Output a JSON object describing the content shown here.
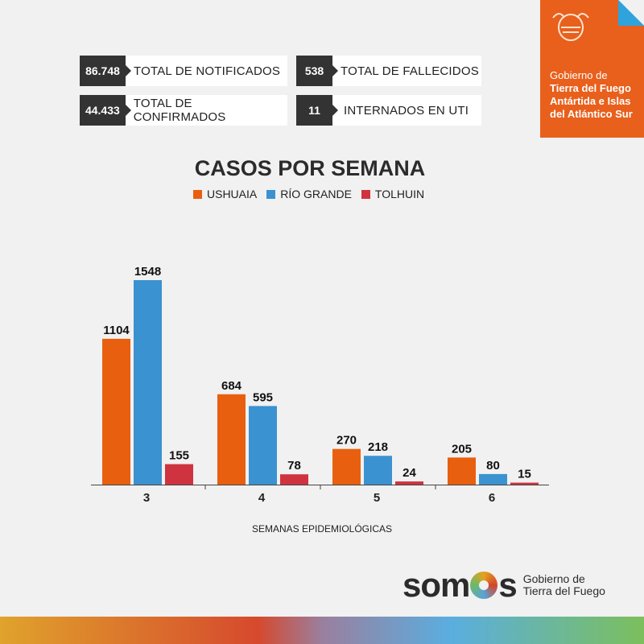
{
  "stats": [
    {
      "value": "86.748",
      "label": "TOTAL DE NOTIFICADOS"
    },
    {
      "value": "538",
      "label": "TOTAL DE FALLECIDOS"
    },
    {
      "value": "44.433",
      "label": "TOTAL DE CONFIRMADOS"
    },
    {
      "value": "11",
      "label": "INTERNADOS EN UTI"
    }
  ],
  "brand": {
    "line1": "Gobierno de",
    "line2": "Tierra del Fuego",
    "line3": "Antártida e Islas",
    "line4": "del Atlántico Sur"
  },
  "footer": {
    "logo": "somos",
    "line1": "Gobierno de",
    "line2": "Tierra del Fuego"
  },
  "chart_data": {
    "type": "bar",
    "title": "CASOS POR SEMANA",
    "xlabel": "SEMANAS EPIDEMIOLÓGICAS",
    "ylabel": "",
    "categories": [
      "3",
      "4",
      "5",
      "6"
    ],
    "series": [
      {
        "name": "USHUAIA",
        "color": "#e8600f",
        "values": [
          1104,
          684,
          270,
          205
        ]
      },
      {
        "name": "RÍO GRANDE",
        "color": "#3a92d0",
        "values": [
          1548,
          595,
          218,
          80
        ]
      },
      {
        "name": "TOLHUIN",
        "color": "#cf3340",
        "values": [
          155,
          78,
          24,
          15
        ]
      }
    ],
    "ylim": [
      0,
      1548
    ],
    "legend": "top"
  }
}
